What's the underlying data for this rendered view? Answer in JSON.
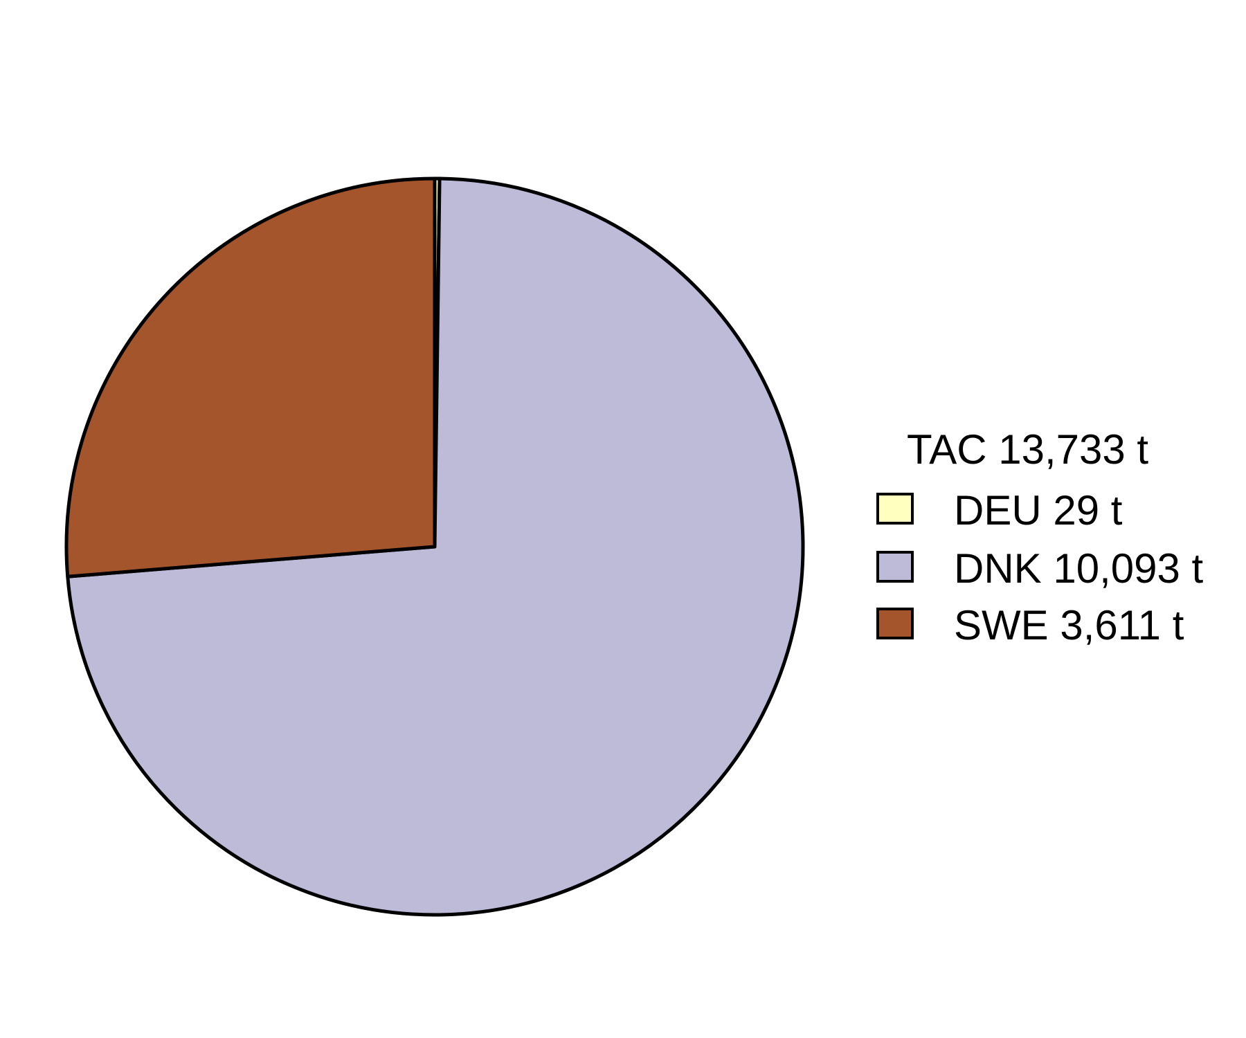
{
  "chart_data": {
    "type": "pie",
    "title": "",
    "legend_title": "TAC 13,733 t",
    "legend_position": "right",
    "start_angle": "12 o'clock",
    "direction": "clockwise",
    "slices": [
      {
        "label": "DEU 29 t",
        "category": "DEU",
        "value": 29,
        "color": "#FFFFC0"
      },
      {
        "label": "DNK 10,093 t",
        "category": "DNK",
        "value": 10093,
        "color": "#BEBBD9"
      },
      {
        "label": "SWE 3,611 t",
        "category": "SWE",
        "value": 3611,
        "color": "#A5552B"
      }
    ],
    "outline_color": "#000000"
  }
}
